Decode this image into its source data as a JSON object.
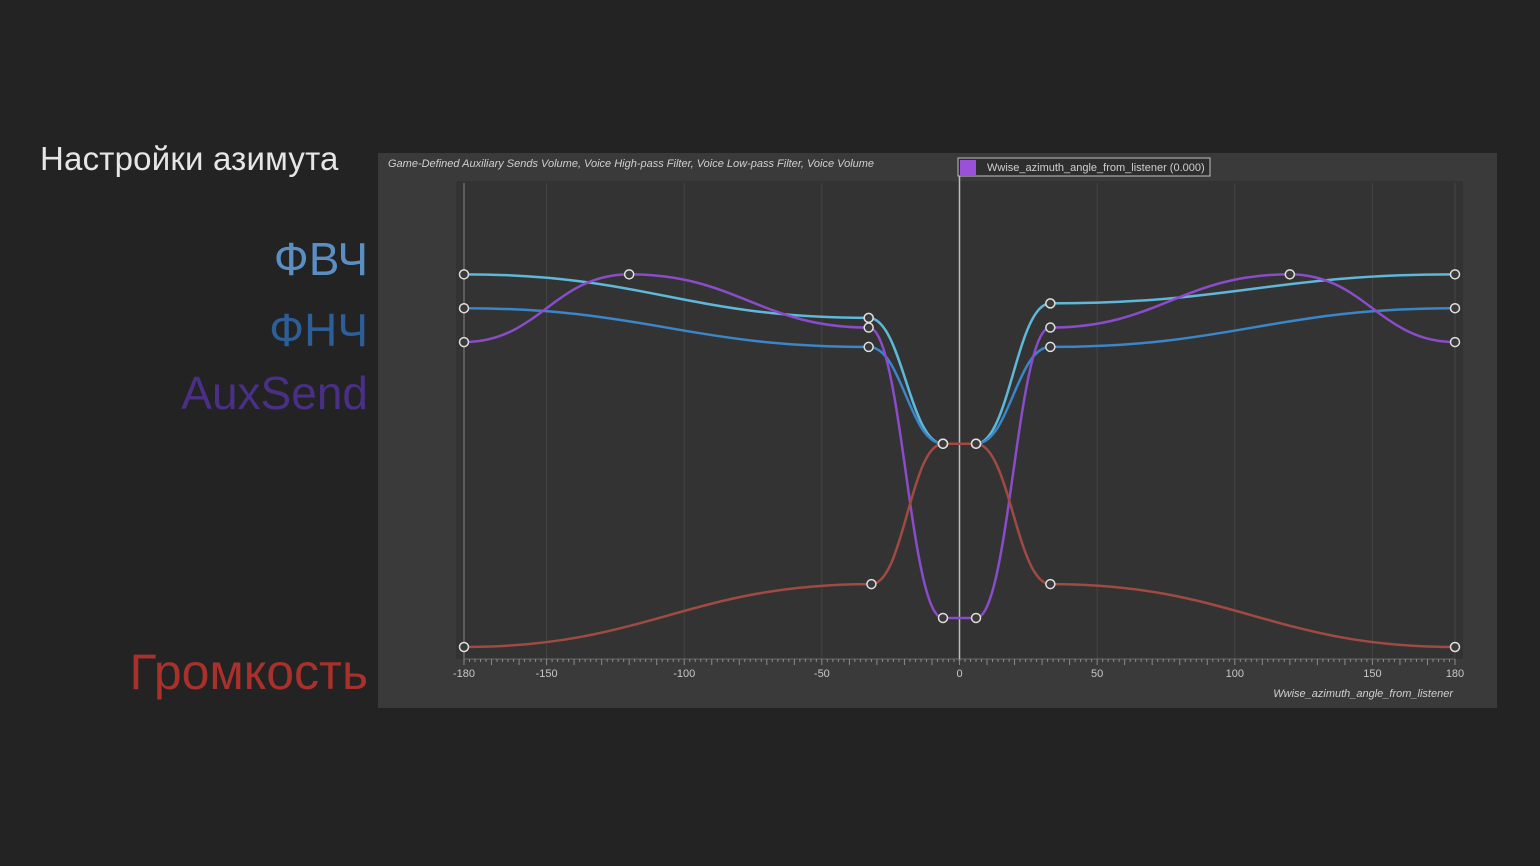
{
  "heading": "Настройки азимута",
  "labels": {
    "hpf": "ФВЧ",
    "lpf": "ФНЧ",
    "aux": "AuxSend",
    "volume": "Громкость"
  },
  "colors": {
    "background": "#222322",
    "panel": "#3a3a3a",
    "hpf": "#5fb8d8",
    "lpf": "#3a86c8",
    "aux": "#8a4cc8",
    "volume": "#a04a44",
    "cursor": "#9a50d8"
  },
  "chart_data": {
    "type": "line",
    "header": "Game-Defined Auxiliary Sends Volume, Voice High-pass Filter, Voice Low-pass Filter, Voice Volume",
    "cursor_readout": "Wwise_azimuth_angle_from_listener (0.000)",
    "xlabel": "Wwise_azimuth_angle_from_listener",
    "xlim": [
      -180,
      180
    ],
    "xticks": [
      "-180",
      "-150",
      "-100",
      "-50",
      "0",
      "50",
      "100",
      "150",
      "180"
    ],
    "ylim": [
      0,
      100
    ],
    "cursor_x": 0,
    "series": [
      {
        "key": "hpf",
        "points": [
          [
            -180,
            77
          ],
          [
            -33,
            68
          ],
          [
            -6,
            42
          ],
          [
            6,
            42
          ],
          [
            33,
            71
          ],
          [
            180,
            77
          ]
        ]
      },
      {
        "key": "lpf",
        "points": [
          [
            -180,
            70
          ],
          [
            -33,
            62
          ],
          [
            -6,
            42
          ],
          [
            6,
            42
          ],
          [
            33,
            62
          ],
          [
            180,
            70
          ]
        ]
      },
      {
        "key": "aux",
        "points": [
          [
            -180,
            63
          ],
          [
            -120,
            77
          ],
          [
            -33,
            66
          ],
          [
            -6,
            6
          ],
          [
            6,
            6
          ],
          [
            33,
            66
          ],
          [
            120,
            77
          ],
          [
            180,
            63
          ]
        ]
      },
      {
        "key": "volume",
        "points": [
          [
            -180,
            0
          ],
          [
            -32,
            13
          ],
          [
            -6,
            42
          ],
          [
            6,
            42
          ],
          [
            33,
            13
          ],
          [
            180,
            0
          ]
        ]
      }
    ]
  }
}
